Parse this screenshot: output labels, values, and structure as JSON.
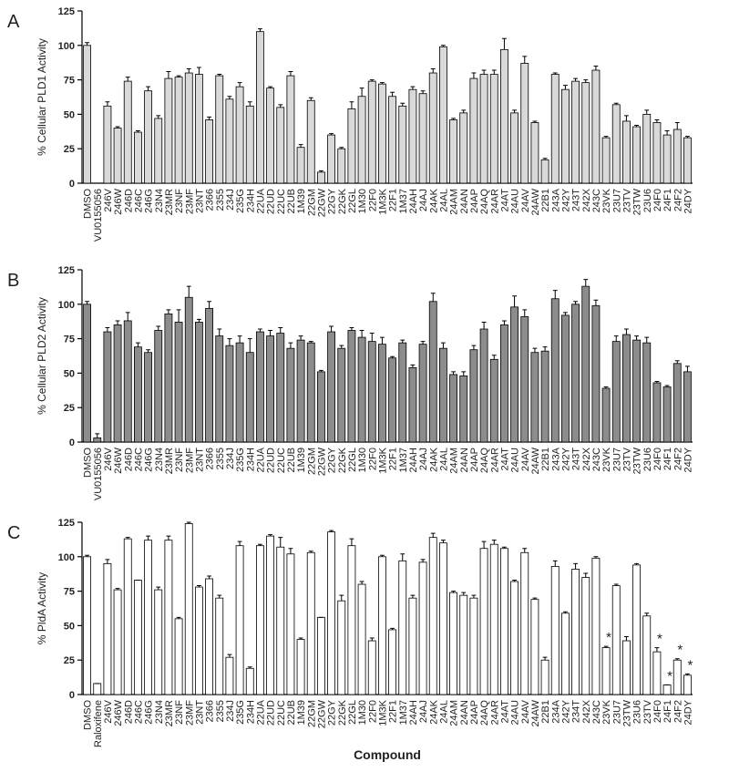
{
  "chart_data": [
    {
      "type": "bar",
      "label": "A",
      "ylabel": "% Cellular PLD1 Activity",
      "color": "#d9d9d9",
      "categories": [
        "DMSO",
        "VU0155056",
        "246V",
        "246W",
        "246D",
        "246C",
        "246G",
        "23N4",
        "23MR",
        "23NF",
        "23MF",
        "23NT",
        "2366",
        "2355",
        "234J",
        "235G",
        "234H",
        "22UA",
        "22UD",
        "22UC",
        "22UB",
        "1M39",
        "22GM",
        "22GW",
        "22GY",
        "22GK",
        "22GL",
        "1M30",
        "22F0",
        "1M3K",
        "22F1",
        "1M37",
        "24AH",
        "24AJ",
        "24AK",
        "24AL",
        "24AM",
        "24AN",
        "24AP",
        "24AQ",
        "24AR",
        "24AT",
        "24AU",
        "24AV",
        "24AW",
        "22B1",
        "243A",
        "242Y",
        "243T",
        "242X",
        "243C",
        "23VK",
        "23U7",
        "23TV",
        "23TW",
        "23U6",
        "24F0",
        "24F1",
        "24F2",
        "24DY"
      ],
      "values": [
        100,
        0,
        56,
        40,
        74,
        37,
        67,
        47,
        76,
        77,
        80,
        79,
        46,
        78,
        61,
        70,
        56,
        110,
        69,
        55,
        78,
        26,
        60,
        8,
        35,
        25,
        54,
        63,
        74,
        72,
        63,
        56,
        68,
        65,
        80,
        99,
        46,
        51,
        76,
        79,
        79,
        97,
        51,
        87,
        44,
        17,
        79,
        68,
        74,
        73,
        82,
        33,
        57,
        45,
        41,
        50,
        44,
        35,
        39,
        33
      ],
      "errors": [
        2,
        0,
        3,
        1,
        3,
        1,
        3,
        2,
        5,
        1,
        3,
        5,
        2,
        1,
        2,
        3,
        3,
        2,
        1,
        2,
        3,
        2,
        2,
        1,
        1,
        1,
        5,
        6,
        1,
        1,
        3,
        2,
        2,
        2,
        3,
        1,
        1,
        2,
        4,
        3,
        3,
        8,
        2,
        5,
        1,
        1,
        1,
        3,
        2,
        2,
        3,
        1,
        1,
        4,
        1,
        3,
        2,
        3,
        5,
        1
      ],
      "ylim": [
        0,
        125
      ],
      "yticks": [
        0,
        25,
        50,
        75,
        100,
        125
      ]
    },
    {
      "type": "bar",
      "label": "B",
      "ylabel": "% Cellular PLD2 Activity",
      "color": "#8c8c8c",
      "categories": [
        "DMSO",
        "VU0155056",
        "246V",
        "246W",
        "246D",
        "246C",
        "246G",
        "23N4",
        "23MR",
        "23NF",
        "23MF",
        "23NT",
        "2366",
        "2355",
        "234J",
        "235G",
        "234H",
        "22UA",
        "22UD",
        "22UC",
        "22UB",
        "1M39",
        "22GM",
        "22GW",
        "22GY",
        "22GK",
        "22GL",
        "1M30",
        "22F0",
        "1M3K",
        "22F1",
        "1M37",
        "24AH",
        "24AJ",
        "24AK",
        "24AL",
        "24AM",
        "24AN",
        "24AP",
        "24AQ",
        "24AR",
        "24AT",
        "24AU",
        "24AV",
        "24AW",
        "22B1",
        "243A",
        "242Y",
        "243T",
        "242X",
        "243C",
        "23VK",
        "23U7",
        "23TV",
        "23TW",
        "23U6",
        "24F0",
        "24F1",
        "24F2",
        "24DY"
      ],
      "values": [
        100,
        3,
        80,
        85,
        88,
        69,
        65,
        81,
        93,
        87,
        105,
        87,
        97,
        77,
        70,
        72,
        65,
        80,
        77,
        79,
        68,
        74,
        72,
        51,
        80,
        68,
        81,
        76,
        73,
        71,
        61,
        72,
        54,
        71,
        102,
        68,
        49,
        48,
        67,
        82,
        60,
        85,
        98,
        91,
        65,
        66,
        104,
        92,
        100,
        113,
        99,
        39,
        73,
        78,
        74,
        72,
        43,
        40,
        57,
        51
      ],
      "errors": [
        2,
        3,
        3,
        3,
        6,
        3,
        2,
        3,
        3,
        9,
        8,
        2,
        5,
        5,
        5,
        5,
        10,
        2,
        4,
        4,
        4,
        3,
        1,
        1,
        4,
        2,
        2,
        5,
        6,
        5,
        1,
        2,
        2,
        2,
        6,
        4,
        2,
        3,
        3,
        5,
        3,
        3,
        8,
        5,
        3,
        3,
        6,
        2,
        2,
        5,
        4,
        1,
        4,
        4,
        3,
        4,
        1,
        1,
        2,
        4
      ],
      "ylim": [
        0,
        125
      ],
      "yticks": [
        0,
        25,
        50,
        75,
        100,
        125
      ]
    },
    {
      "type": "bar",
      "label": "C",
      "ylabel": "% PldA Activity",
      "xlabel": "Compound",
      "color": "#ffffff",
      "categories": [
        "DMSO",
        "Raloxifene",
        "246V",
        "246W",
        "246D",
        "246C",
        "246G",
        "23N4",
        "23MR",
        "23NF",
        "23MF",
        "23NT",
        "2366",
        "2355",
        "234J",
        "235G",
        "234H",
        "22UA",
        "22UD",
        "22UC",
        "22UB",
        "1M39",
        "22GM",
        "22GW",
        "22GY",
        "22GK",
        "22GL",
        "1M30",
        "22F0",
        "1M3K",
        "22F1",
        "1M37",
        "24AH",
        "24AJ",
        "24AK",
        "24AL",
        "24AM",
        "24AN",
        "24AP",
        "24AQ",
        "24AR",
        "24AT",
        "24AU",
        "24AV",
        "24AW",
        "22B1",
        "234A",
        "242Y",
        "234T",
        "242X",
        "243C",
        "23VK",
        "23U7",
        "23TW",
        "23U6",
        "23TV",
        "24F0",
        "24F1",
        "24F2",
        "24DY"
      ],
      "values": [
        100,
        8,
        95,
        76,
        113,
        83,
        112,
        76,
        112,
        55,
        124,
        78,
        84,
        70,
        27,
        108,
        19,
        108,
        115,
        107,
        102,
        40,
        103,
        56,
        118,
        68,
        108,
        80,
        39,
        100,
        47,
        97,
        70,
        96,
        114,
        110,
        74,
        72,
        70,
        106,
        109,
        106,
        82,
        103,
        69,
        25,
        93,
        59,
        91,
        85,
        99,
        34,
        79,
        39,
        94,
        57,
        31,
        7,
        25,
        14
      ],
      "errors": [
        1,
        0,
        3,
        1,
        1,
        0,
        3,
        2,
        3,
        1,
        1,
        1,
        2,
        2,
        2,
        3,
        1,
        1,
        1,
        7,
        4,
        1,
        1,
        0,
        1,
        4,
        5,
        2,
        2,
        1,
        1,
        5,
        2,
        2,
        3,
        2,
        1,
        2,
        2,
        5,
        3,
        1,
        1,
        3,
        1,
        2,
        4,
        1,
        4,
        3,
        1,
        1,
        1,
        3,
        1,
        2,
        3,
        0,
        1,
        1
      ],
      "annotations": [
        {
          "category": "23VK",
          "text": "*"
        },
        {
          "category": "24F0",
          "text": "*"
        },
        {
          "category": "24F1",
          "text": "*"
        },
        {
          "category": "24F2",
          "text": "*"
        },
        {
          "category": "24DY",
          "text": "*"
        }
      ],
      "ylim": [
        0,
        125
      ],
      "yticks": [
        0,
        25,
        50,
        75,
        100,
        125
      ]
    }
  ]
}
